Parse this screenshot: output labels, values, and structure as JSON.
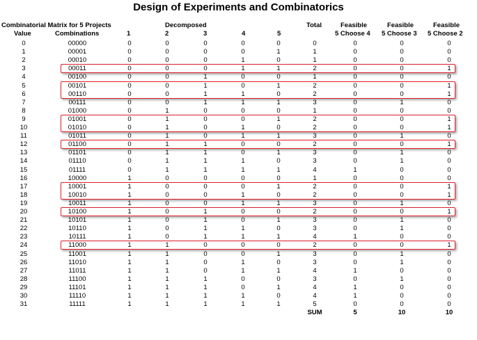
{
  "title": "Design of Experiments and Combinatorics",
  "headers": {
    "matrix": "Combinatorial Matrix for 5 Projects",
    "value": "Value",
    "combinations": "Combinations",
    "decomposed": "Decomposed",
    "d1": "1",
    "d2": "2",
    "d3": "3",
    "d4": "4",
    "d5": "5",
    "total": "Total",
    "feasible": "Feasible",
    "c4": "5 Choose 4",
    "c3": "5 Choose 3",
    "c2": "5 Choose 2"
  },
  "rows": [
    [
      "0",
      "00000",
      "0",
      "0",
      "0",
      "0",
      "0",
      "0",
      "0",
      "0",
      "0"
    ],
    [
      "1",
      "00001",
      "0",
      "0",
      "0",
      "0",
      "1",
      "1",
      "0",
      "0",
      "0"
    ],
    [
      "2",
      "00010",
      "0",
      "0",
      "0",
      "1",
      "0",
      "1",
      "0",
      "0",
      "0"
    ],
    [
      "3",
      "00011",
      "0",
      "0",
      "0",
      "1",
      "1",
      "2",
      "0",
      "0",
      "1"
    ],
    [
      "4",
      "00100",
      "0",
      "0",
      "1",
      "0",
      "0",
      "1",
      "0",
      "0",
      "0"
    ],
    [
      "5",
      "00101",
      "0",
      "0",
      "1",
      "0",
      "1",
      "2",
      "0",
      "0",
      "1"
    ],
    [
      "6",
      "00110",
      "0",
      "0",
      "1",
      "1",
      "0",
      "2",
      "0",
      "0",
      "1"
    ],
    [
      "7",
      "00111",
      "0",
      "0",
      "1",
      "1",
      "1",
      "3",
      "0",
      "1",
      "0"
    ],
    [
      "8",
      "01000",
      "0",
      "1",
      "0",
      "0",
      "0",
      "1",
      "0",
      "0",
      "0"
    ],
    [
      "9",
      "01001",
      "0",
      "1",
      "0",
      "0",
      "1",
      "2",
      "0",
      "0",
      "1"
    ],
    [
      "10",
      "01010",
      "0",
      "1",
      "0",
      "1",
      "0",
      "2",
      "0",
      "0",
      "1"
    ],
    [
      "11",
      "01011",
      "0",
      "1",
      "0",
      "1",
      "1",
      "3",
      "0",
      "1",
      "0"
    ],
    [
      "12",
      "01100",
      "0",
      "1",
      "1",
      "0",
      "0",
      "2",
      "0",
      "0",
      "1"
    ],
    [
      "13",
      "01101",
      "0",
      "1",
      "1",
      "0",
      "1",
      "3",
      "0",
      "1",
      "0"
    ],
    [
      "14",
      "01110",
      "0",
      "1",
      "1",
      "1",
      "0",
      "3",
      "0",
      "1",
      "0"
    ],
    [
      "15",
      "01111",
      "0",
      "1",
      "1",
      "1",
      "1",
      "4",
      "1",
      "0",
      "0"
    ],
    [
      "16",
      "10000",
      "1",
      "0",
      "0",
      "0",
      "0",
      "1",
      "0",
      "0",
      "0"
    ],
    [
      "17",
      "10001",
      "1",
      "0",
      "0",
      "0",
      "1",
      "2",
      "0",
      "0",
      "1"
    ],
    [
      "18",
      "10010",
      "1",
      "0",
      "0",
      "1",
      "0",
      "2",
      "0",
      "0",
      "1"
    ],
    [
      "19",
      "10011",
      "1",
      "0",
      "0",
      "1",
      "1",
      "3",
      "0",
      "1",
      "0"
    ],
    [
      "20",
      "10100",
      "1",
      "0",
      "1",
      "0",
      "0",
      "2",
      "0",
      "0",
      "1"
    ],
    [
      "21",
      "10101",
      "1",
      "0",
      "1",
      "0",
      "1",
      "3",
      "0",
      "1",
      "0"
    ],
    [
      "22",
      "10110",
      "1",
      "0",
      "1",
      "1",
      "0",
      "3",
      "0",
      "1",
      "0"
    ],
    [
      "23",
      "10111",
      "1",
      "0",
      "1",
      "1",
      "1",
      "4",
      "1",
      "0",
      "0"
    ],
    [
      "24",
      "11000",
      "1",
      "1",
      "0",
      "0",
      "0",
      "2",
      "0",
      "0",
      "1"
    ],
    [
      "25",
      "11001",
      "1",
      "1",
      "0",
      "0",
      "1",
      "3",
      "0",
      "1",
      "0"
    ],
    [
      "26",
      "11010",
      "1",
      "1",
      "0",
      "1",
      "0",
      "3",
      "0",
      "1",
      "0"
    ],
    [
      "27",
      "11011",
      "1",
      "1",
      "0",
      "1",
      "1",
      "4",
      "1",
      "0",
      "0"
    ],
    [
      "28",
      "11100",
      "1",
      "1",
      "1",
      "0",
      "0",
      "3",
      "0",
      "1",
      "0"
    ],
    [
      "29",
      "11101",
      "1",
      "1",
      "1",
      "0",
      "1",
      "4",
      "1",
      "0",
      "0"
    ],
    [
      "30",
      "11110",
      "1",
      "1",
      "1",
      "1",
      "0",
      "4",
      "1",
      "0",
      "0"
    ],
    [
      "31",
      "11111",
      "1",
      "1",
      "1",
      "1",
      "1",
      "5",
      "0",
      "0",
      "0"
    ]
  ],
  "sum_row": {
    "label": "SUM",
    "c4": "5",
    "c3": "10",
    "c2": "10"
  },
  "highlighted_groups": [
    [
      3
    ],
    [
      5,
      6
    ],
    [
      9,
      10
    ],
    [
      12
    ],
    [
      17,
      18
    ],
    [
      20
    ],
    [
      24
    ]
  ],
  "highlight_color": "#e0202a"
}
